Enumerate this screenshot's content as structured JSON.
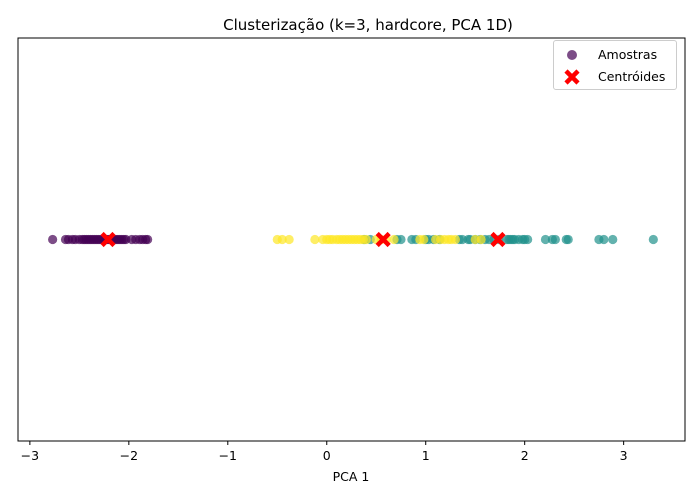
{
  "chart_data": {
    "type": "scatter",
    "title": "Clusterização (k=3, hardcore, PCA 1D)",
    "xlabel": "PCA 1",
    "ylabel": "",
    "xlim": [
      -3.12,
      3.62
    ],
    "ylim": [
      -0.05,
      0.05
    ],
    "xticks": [
      -3,
      -2,
      -1,
      0,
      1,
      2,
      3
    ],
    "yticks": [],
    "grid": false,
    "legend_position": "top-right",
    "legend": [
      {
        "label": "Amostras",
        "marker": "circle",
        "color": "#440154"
      },
      {
        "label": "Centróides",
        "marker": "x",
        "color": "#ff0000"
      }
    ],
    "cluster_colors": [
      "#440154",
      "#21918c",
      "#fde725"
    ],
    "series": [
      {
        "cluster": 0,
        "color": "#440154",
        "x": [
          -2.77,
          -2.64,
          -2.61,
          -2.57,
          -2.54,
          -2.5,
          -2.47,
          -2.45,
          -2.43,
          -2.41,
          -2.39,
          -2.37,
          -2.35,
          -2.33,
          -2.31,
          -2.29,
          -2.27,
          -2.25,
          -2.23,
          -2.21,
          -2.19,
          -2.17,
          -2.15,
          -2.13,
          -2.11,
          -2.09,
          -2.07,
          -2.05,
          -2.03,
          -1.97,
          -1.93,
          -1.89,
          -1.86,
          -1.83,
          -1.81
        ],
        "y": [
          0,
          0,
          0,
          0,
          0,
          0,
          0,
          0,
          0,
          0,
          0,
          0,
          0,
          0,
          0,
          0,
          0,
          0,
          0,
          0,
          0,
          0,
          0,
          0,
          0,
          0,
          0,
          0,
          0,
          0,
          0,
          0,
          0,
          0,
          0
        ]
      },
      {
        "cluster": 1,
        "color": "#21918c",
        "x": [
          0.38,
          0.44,
          0.71,
          0.75,
          0.86,
          0.9,
          1.0,
          1.03,
          1.08,
          1.14,
          1.34,
          1.37,
          1.43,
          1.45,
          1.5,
          1.55,
          1.6,
          1.64,
          1.69,
          1.74,
          1.82,
          1.84,
          1.86,
          1.88,
          1.9,
          1.94,
          1.98,
          2.0,
          2.03,
          2.21,
          2.28,
          2.31,
          2.42,
          2.44,
          2.75,
          2.8,
          2.89,
          3.3
        ],
        "y": [
          0,
          0,
          0,
          0,
          0,
          0,
          0,
          0,
          0,
          0,
          0,
          0,
          0,
          0,
          0,
          0,
          0,
          0,
          0,
          0,
          0,
          0,
          0,
          0,
          0,
          0,
          0,
          0,
          0,
          0,
          0,
          0,
          0,
          0,
          0,
          0,
          0,
          0
        ]
      },
      {
        "cluster": 2,
        "color": "#fde725",
        "x": [
          -0.5,
          -0.45,
          -0.38,
          -0.12,
          -0.04,
          0.0,
          0.03,
          0.06,
          0.1,
          0.13,
          0.16,
          0.19,
          0.22,
          0.25,
          0.28,
          0.31,
          0.34,
          0.37,
          0.4,
          0.5,
          0.55,
          0.6,
          0.68,
          0.94,
          0.98,
          1.1,
          1.15,
          1.19,
          1.23,
          1.26,
          1.3,
          1.5,
          1.56
        ],
        "y": [
          0,
          0,
          0,
          0,
          0,
          0,
          0,
          0,
          0,
          0,
          0,
          0,
          0,
          0,
          0,
          0,
          0,
          0,
          0,
          0,
          0,
          0,
          0,
          0,
          0,
          0,
          0,
          0,
          0,
          0,
          0,
          0,
          0
        ]
      }
    ],
    "centroids": {
      "name": "Centróides",
      "color": "#ff0000",
      "x": [
        -2.21,
        0.57,
        1.73
      ],
      "y": [
        0,
        0,
        0
      ]
    }
  }
}
